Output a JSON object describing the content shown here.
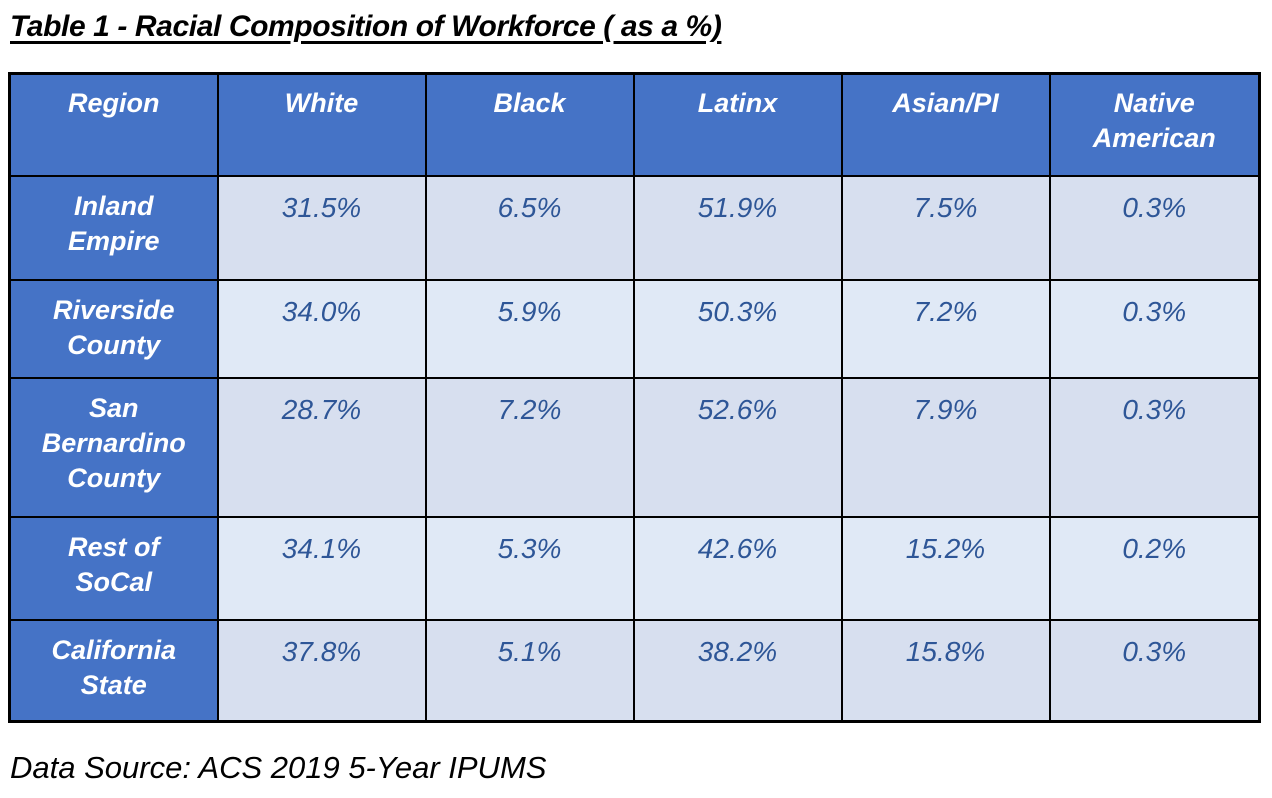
{
  "document": {
    "title": "Table 1 - Racial Composition of Workforce ( as a %)",
    "source_note": "Data Source: ACS 2019 5-Year IPUMS"
  },
  "colors": {
    "header_blue": "#4573c6",
    "band_dark": "#d7dfef",
    "band_light": "#e0e9f6",
    "value_text_blue": "#2e5697",
    "header_text": "#ffffff",
    "border_black": "#000000"
  },
  "chart_data": {
    "type": "table",
    "title": "Table 1 - Racial Composition of Workforce ( as a %)",
    "columns": [
      "Region",
      "White",
      "Black",
      "Latinx",
      "Asian/PI",
      "Native American"
    ],
    "rows": [
      {
        "region": "Inland Empire",
        "values": [
          "31.5%",
          "6.5%",
          "51.9%",
          "7.5%",
          "0.3%"
        ]
      },
      {
        "region": "Riverside County",
        "values": [
          "34.0%",
          "5.9%",
          "50.3%",
          "7.2%",
          "0.3%"
        ]
      },
      {
        "region": "San Bernardino County",
        "values": [
          "28.7%",
          "7.2%",
          "52.6%",
          "7.9%",
          "0.3%"
        ]
      },
      {
        "region": "Rest of SoCal",
        "values": [
          "34.1%",
          "5.3%",
          "42.6%",
          "15.2%",
          "0.2%"
        ]
      },
      {
        "region": "California State",
        "values": [
          "37.8%",
          "5.1%",
          "38.2%",
          "15.8%",
          "0.3%"
        ]
      }
    ],
    "source": "Data Source: ACS 2019 5-Year IPUMS"
  }
}
